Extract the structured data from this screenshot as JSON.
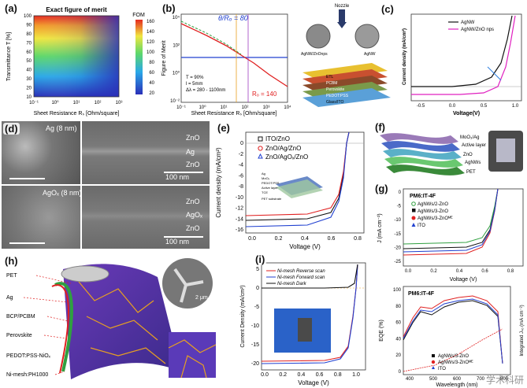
{
  "panels": {
    "a": {
      "label": "(a)",
      "title": "Exact figure of merit",
      "colorbar_title": "FOM",
      "colorbar_ticks": [
        "160",
        "140",
        "120",
        "100",
        "80",
        "60",
        "40",
        "20"
      ],
      "xlabel": "Sheet Resistance Rₛ [Ohm/square]",
      "ylabel": "Transmittance T [%]",
      "xticks": [
        "10⁻¹",
        "10⁰",
        "10¹",
        "10²",
        "10³"
      ],
      "yticks": [
        "100",
        "90",
        "80",
        "70",
        "60",
        "50",
        "40",
        "30",
        "20",
        "10"
      ]
    },
    "b": {
      "label": "(b)",
      "ratio_label": "θ/Rₒ = 80",
      "rc_label": "Rₒ = 140",
      "notes": [
        "T = 90%",
        "l = 5mm",
        "Δλ = 280 - 1100nm"
      ],
      "xlabel": "Sheet Resistance Rₛ [Ohm/square]",
      "ylabel": "Figure of Merit",
      "xticks": [
        "10⁻¹",
        "10⁰",
        "10¹",
        "10²",
        "10³",
        "10⁴"
      ],
      "yticks": [
        "10⁴",
        "10²",
        "10⁰",
        "10⁻²"
      ]
    },
    "c": {
      "label": "(c)",
      "top_label": "Nozzle",
      "sem_left": "AgNW/ZnOnps",
      "sem_right": "AgNW",
      "layers": [
        "ETL",
        "PCBM",
        "Perovskite",
        "PEDOT:PSS",
        "Glass/ITO"
      ],
      "legend": [
        "AgNW",
        "AgNW/ZnO nps"
      ],
      "xlabel": "Voltage(V)",
      "ylabel": "Current density (mA/cm²)",
      "xticks": [
        "-0.5",
        "0.0",
        "0.5",
        "1.0"
      ]
    },
    "d": {
      "label": "(d)",
      "top_left": "Ag (8 nm)",
      "bottom_left": "AgOₓ (8 nm)",
      "top_right_layers": [
        "ZnO",
        "Ag",
        "ZnO"
      ],
      "bottom_right_layers": [
        "ZnO",
        "AgOₓ",
        "ZnO"
      ],
      "scale": "100 nm"
    },
    "e": {
      "label": "(e)",
      "legend": [
        "ITO/ZnO",
        "ZnO/Ag/ZnO",
        "ZnO/AgOₓ/ZnO"
      ],
      "stack": [
        "Ag",
        "MoOₓ",
        "PEDOT:PSS",
        "Active layer",
        "TCE",
        "PET substrate"
      ],
      "xlabel": "Voltage (V)",
      "ylabel": "Current density (mA/cm²)",
      "xticks": [
        "0.0",
        "0.2",
        "0.4",
        "0.6",
        "0.8"
      ],
      "yticks": [
        "0",
        "-2",
        "-4",
        "-6",
        "-8",
        "-10",
        "-12",
        "-14",
        "-16"
      ]
    },
    "f": {
      "label": "(f)",
      "layers": [
        "MoO₃/Ag",
        "Active layer",
        "ZnO",
        "AgNWs",
        "PET"
      ]
    },
    "g": {
      "label": "(g)",
      "top_title": "PM6:IT-4F",
      "top_legend": [
        "AgNWs/2-ZnO",
        "AgNWs/3-ZnO",
        "AgNWs/3-ZnOᴹᴱ",
        "ITO"
      ],
      "top_xlabel": "Voltage (V)",
      "top_ylabel": "J (mA cm⁻²)",
      "top_xticks": [
        "0.0",
        "0.2",
        "0.4",
        "0.6",
        "0.8"
      ],
      "top_yticks": [
        "0",
        "-5",
        "-10",
        "-15",
        "-20",
        "-25"
      ],
      "bottom_title": "PM6:IT-4F",
      "bottom_legend": [
        "AgNWs/3-ZnO",
        "AgNWs/3-ZnOᴹᴱ",
        "ITO"
      ],
      "bottom_xlabel": "Wavelength (nm)",
      "bottom_ylabel": "EQE (%)",
      "bottom_ylabel_right": "Integrated Jₛₒ (mA cm⁻²)",
      "bottom_xticks": [
        "400",
        "500",
        "600",
        "700",
        "800"
      ],
      "bottom_yticks": [
        "0",
        "20",
        "40",
        "60",
        "80",
        "100"
      ]
    },
    "h": {
      "label": "(h)",
      "layers": [
        "PET",
        "Ag",
        "BCP/PCBM",
        "Perovskite",
        "PEDOT:PSS-NiOₓ",
        "Ni-mesh:PH1000"
      ],
      "scale": "2 μm"
    },
    "i": {
      "label": "(i)",
      "legend": [
        "Ni-mesh Reverse scan",
        "Ni-mesh Forward scan",
        "Ni-mesh Dark"
      ],
      "xlabel": "Voltage (V)",
      "ylabel": "Current Density (mA/cm²)",
      "xticks": [
        "0.0",
        "0.2",
        "0.4",
        "0.6",
        "0.8",
        "1.0"
      ],
      "yticks": [
        "5",
        "0",
        "-5",
        "-10",
        "-15",
        "-20"
      ]
    }
  },
  "watermark": "学术科研",
  "colors": {
    "red": "#e02020",
    "blue": "#2040d0",
    "black": "#111111",
    "magenta": "#e020c0",
    "green": "#30a040",
    "purple": "#a040c0",
    "orange": "#e8a020"
  }
}
